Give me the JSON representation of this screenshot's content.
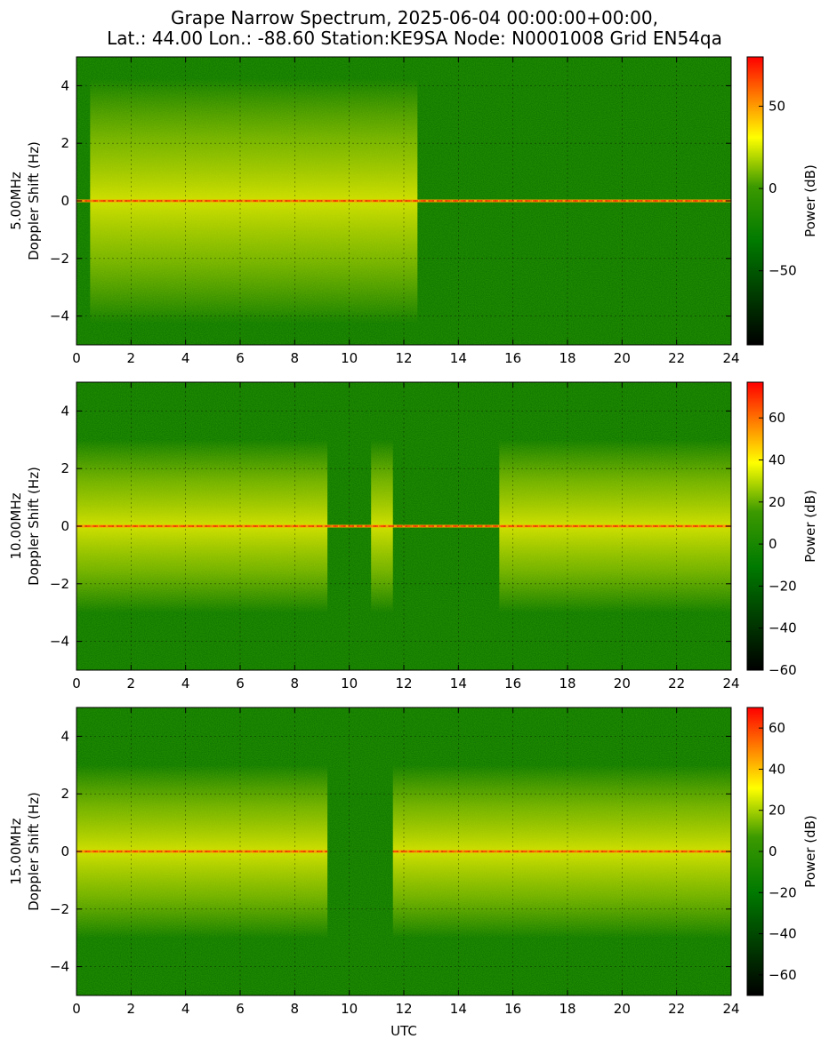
{
  "chart_data": [
    {
      "type": "heatmap",
      "title_lines": [
        "Grape Narrow Spectrum, 2025-06-04 00:00:00+00:00,",
        "Lat.: 44.00 Lon.: -88.60 Station:KE9SA Node: N0001008 Grid EN54qa"
      ],
      "xlabel": "UTC",
      "xlim": [
        0,
        24
      ],
      "x_ticks": [
        "0",
        "2",
        "4",
        "6",
        "8",
        "10",
        "12",
        "14",
        "16",
        "18",
        "20",
        "22",
        "24"
      ],
      "ylim": [
        -5,
        5
      ],
      "y_ticks": [
        "4",
        "2",
        "0",
        "−2",
        "−4"
      ],
      "grid": true,
      "colormap": [
        "#000000",
        "#007a00",
        "#ffff00",
        "#ff0000"
      ],
      "panels": [
        {
          "ylabel_line1": "5.00MHz",
          "ylabel_line2": "Doppler Shift (Hz)",
          "colorbar_label": "Power (dB)",
          "colorbar_range": [
            -95,
            80
          ],
          "colorbar_ticks": [
            "50",
            "0",
            "−50"
          ],
          "carrier_visible_utc": [
            [
              0,
              24
            ]
          ],
          "disturbed_utc": [
            [
              0.5,
              12.5
            ]
          ]
        },
        {
          "ylabel_line1": "10.00MHz",
          "ylabel_line2": "Doppler Shift (Hz)",
          "colorbar_label": "Power (dB)",
          "colorbar_range": [
            -60,
            77
          ],
          "colorbar_ticks": [
            "60",
            "40",
            "20",
            "0",
            "−20",
            "−40",
            "−60"
          ],
          "carrier_visible_utc": [
            [
              0,
              24
            ]
          ],
          "disturbed_utc": [
            [
              0,
              9.2
            ],
            [
              10.8,
              11.6
            ],
            [
              15.5,
              24
            ]
          ]
        },
        {
          "ylabel_line1": "15.00MHz",
          "ylabel_line2": "Doppler Shift (Hz)",
          "colorbar_label": "Power (dB)",
          "colorbar_range": [
            -70,
            70
          ],
          "colorbar_ticks": [
            "60",
            "40",
            "20",
            "0",
            "−20",
            "−40",
            "−60"
          ],
          "carrier_visible_utc": [
            [
              0,
              9.2
            ],
            [
              11.6,
              24
            ]
          ],
          "disturbed_utc": [
            [
              0,
              9.2
            ],
            [
              11.6,
              24
            ]
          ]
        }
      ]
    }
  ]
}
